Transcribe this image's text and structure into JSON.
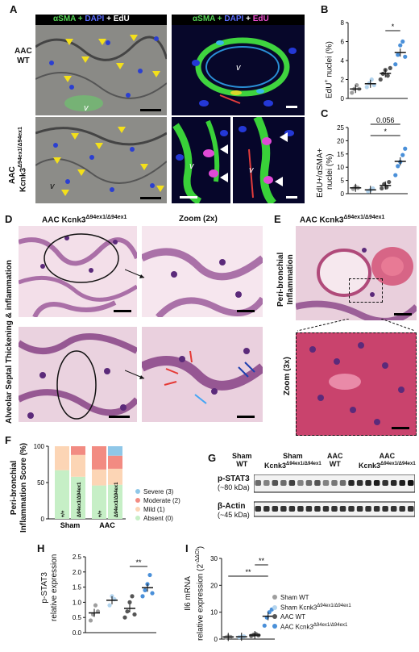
{
  "panels": {
    "A": {
      "label": "A",
      "headers": {
        "left": [
          "αSMA + ",
          "DAPI",
          " + EdU"
        ],
        "right": [
          "αSMA + ",
          "DAPI",
          " + ",
          "EdU"
        ]
      },
      "row1": "AAC\nWT",
      "row2": "AAC\nKcnk3Δ94ex1/Δ94ex1",
      "row1_l1": "AAC",
      "row1_l2": "WT",
      "row2_l1": "AAC",
      "row2_l2": "Kcnk3",
      "row2_sup": "Δ94ex1/Δ94ex1",
      "v": "v"
    },
    "B": {
      "label": "B",
      "ylabel": "EdU+ nuclei (%)",
      "ylabel_main": "EdU",
      "ylabel_sup": "+",
      "ylabel_rest": " nuclei (%)",
      "sig": "*"
    },
    "C": {
      "label": "C",
      "ylabel_l1": "EdU+/αSMA+",
      "ylabel_l2": "nuclei (%)",
      "p_value": "0.056",
      "sig": "*"
    },
    "D": {
      "label": "D",
      "title": "AAC Kcnk3",
      "title_sup": "Δ94ex1/Δ94ex1",
      "zoom": "Zoom (2x)",
      "side": "Alveolar Septal Thickening & inflammation"
    },
    "E": {
      "label": "E",
      "title": "AAC Kcnk3",
      "title_sup": "Δ94ex1/Δ94ex1",
      "side_l1": "Peri-bronchial",
      "side_l2": "Inflammation",
      "zoom": "Zoom (3x)"
    },
    "F": {
      "label": "F",
      "ylabel_l1": "Peri-bronchial",
      "ylabel_l2": "Inflammation Score (%)",
      "bar_text": [
        "+/+",
        "Δ94ex1/Δ94ex1",
        "+/+",
        "Δ94ex1/Δ94ex1"
      ],
      "xcats": [
        "Sham",
        "AAC"
      ],
      "legend": [
        {
          "label": "Severe (3)",
          "color": "#8fc7e8"
        },
        {
          "label": "Moderate (2)",
          "color": "#f28b82"
        },
        {
          "label": "Mild (1)",
          "color": "#fcd5b5"
        },
        {
          "label": "Absent (0)",
          "color": "#c6efc6"
        }
      ]
    },
    "G": {
      "label": "G",
      "groups": [
        {
          "l1": "Sham",
          "l2": "WT"
        },
        {
          "l1": "Sham",
          "l2": "Kcnk3",
          "sup": "Δ94ex1/Δ94ex1"
        },
        {
          "l1": "AAC",
          "l2": "WT"
        },
        {
          "l1": "AAC",
          "l2": "Kcnk3",
          "sup": "Δ94ex1/Δ94ex1"
        }
      ],
      "blots": [
        {
          "name": "p-STAT3",
          "size": "(~80 kDa)"
        },
        {
          "name": "β-Actin",
          "size": "(~45 kDa)"
        }
      ]
    },
    "H": {
      "label": "H",
      "ylabel_l1": "p-STAT3",
      "ylabel_l2": "relative expression",
      "sig": "**"
    },
    "I": {
      "label": "I",
      "ylabel_l1": "Il6 mRNA",
      "ylabel_l2": "relative expression (2",
      "ylabel_sup": "-ΔΔCt",
      "ylabel_end": ")",
      "sig1": "**",
      "sig2": "**"
    }
  },
  "legend_groups": [
    {
      "label": "Sham WT",
      "color": "#9e9e9e"
    },
    {
      "label": "Sham Kcnk3",
      "sup": "Δ94ex1/Δ94ex1",
      "color": "#b3d4ee"
    },
    {
      "label": "AAC WT",
      "color": "#555555"
    },
    {
      "label": "AAC Kcnk3",
      "sup": "Δ94ex1/Δ94ex1",
      "color": "#4a90d9"
    }
  ],
  "chart_data": [
    {
      "type": "scatter",
      "panel": "B",
      "ylim": [
        0,
        8
      ],
      "yticks": [
        "0",
        "2",
        "4",
        "6",
        "8"
      ],
      "series": [
        {
          "values": [
            0.6,
            1.0,
            1.4,
            1.0
          ]
        },
        {
          "values": [
            1.2,
            1.6,
            2.0,
            1.4
          ]
        },
        {
          "values": [
            2.0,
            2.6,
            3.0,
            2.4,
            3.2
          ]
        },
        {
          "values": [
            3.6,
            4.6,
            5.6,
            6.0,
            4.4
          ]
        }
      ]
    },
    {
      "type": "scatter",
      "panel": "C",
      "ylim": [
        0,
        25
      ],
      "yticks": [
        "0",
        "5",
        "10",
        "15",
        "20",
        "25"
      ],
      "series": [
        {
          "values": [
            1.8,
            2.6,
            2.2
          ]
        },
        {
          "values": [
            0.9,
            1.4,
            2.0
          ]
        },
        {
          "values": [
            2.0,
            3.6,
            2.4,
            4.4
          ]
        },
        {
          "values": [
            7.0,
            10.4,
            12.0,
            14.6,
            17.0
          ]
        }
      ]
    },
    {
      "type": "bar",
      "panel": "F",
      "stacked": true,
      "ylim": [
        0,
        100
      ],
      "yticks": [
        "0",
        "50",
        "100"
      ],
      "categories": [
        "Sham +/+",
        "Sham Δ94ex1/Δ94ex1",
        "AAC +/+",
        "AAC Δ94ex1/Δ94ex1"
      ],
      "series": [
        {
          "name": "Absent (0)",
          "values": [
            67,
            58,
            46,
            47
          ]
        },
        {
          "name": "Mild (1)",
          "values": [
            33,
            30,
            22,
            22
          ]
        },
        {
          "name": "Moderate (2)",
          "values": [
            0,
            12,
            32,
            18
          ]
        },
        {
          "name": "Severe (3)",
          "values": [
            0,
            0,
            0,
            13
          ]
        }
      ]
    },
    {
      "type": "scatter",
      "panel": "H",
      "ylim": [
        0,
        2.5
      ],
      "yticks": [
        "0.0",
        "0.5",
        "1.0",
        "1.5",
        "2.0",
        "2.5"
      ],
      "series": [
        {
          "values": [
            0.4,
            0.6,
            0.9,
            0.7
          ]
        },
        {
          "values": [
            0.9,
            1.2,
            1.1
          ]
        },
        {
          "values": [
            0.5,
            0.7,
            1.0,
            1.2,
            0.6
          ]
        },
        {
          "values": [
            1.2,
            1.4,
            1.6,
            1.9,
            1.3
          ]
        }
      ]
    },
    {
      "type": "scatter",
      "panel": "I",
      "ylim": [
        0,
        30
      ],
      "yticks": [
        "0",
        "10",
        "20",
        "30"
      ],
      "series": [
        {
          "values": [
            0.6,
            1.0,
            0.8
          ]
        },
        {
          "values": [
            0.7,
            0.9,
            1.0
          ]
        },
        {
          "values": [
            1.2,
            1.6,
            1.8,
            1.4
          ]
        },
        {
          "values": [
            5.0,
            8.0,
            10.0,
            11.0
          ]
        }
      ]
    }
  ]
}
